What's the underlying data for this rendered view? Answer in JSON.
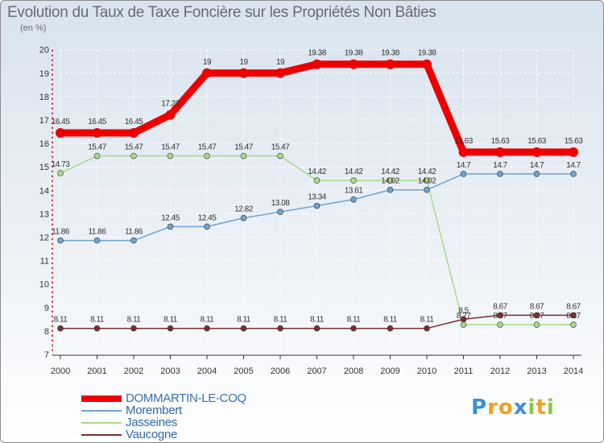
{
  "chart_data": {
    "type": "line",
    "title": "Evolution du Taux de Taxe Foncière sur les Propriétés Non Bâties",
    "unit": "(en %)",
    "categories": [
      "2000",
      "2001",
      "2002",
      "2003",
      "2004",
      "2005",
      "2006",
      "2007",
      "2008",
      "2009",
      "2010",
      "2011",
      "2012",
      "2013",
      "2014"
    ],
    "ylim": [
      7,
      20
    ],
    "yticks": [
      7,
      8,
      9,
      10,
      11,
      12,
      13,
      14,
      15,
      16,
      17,
      18,
      19,
      20
    ],
    "series": [
      {
        "name": "DOMMARTIN-LE-COQ",
        "color": "#ee0000",
        "values": [
          16.45,
          16.45,
          16.45,
          17.22,
          19,
          19,
          19,
          19.38,
          19.38,
          19.38,
          19.38,
          15.63,
          15.63,
          15.63,
          15.63
        ],
        "labels": [
          "16.45",
          "16.45",
          "16.45",
          "17.22",
          "19",
          "19",
          "19",
          "19.38",
          "19.38",
          "19.38",
          "19.38",
          "15.63",
          "15.63",
          "15.63",
          "15.63"
        ]
      },
      {
        "name": "Morembert",
        "color": "#6fa3d0",
        "values": [
          11.86,
          11.86,
          11.86,
          12.45,
          12.45,
          12.82,
          13.08,
          13.34,
          13.61,
          14.02,
          14.02,
          14.7,
          14.7,
          14.7,
          14.7
        ],
        "labels": [
          "11.86",
          "11.86",
          "11.86",
          "12.45",
          "12.45",
          "12.82",
          "13.08",
          "13.34",
          "13.61",
          "14.02",
          "14.02",
          "14.7",
          "14.7",
          "14.7",
          "14.7"
        ]
      },
      {
        "name": "Jasseines",
        "color": "#a9d98a",
        "values": [
          14.73,
          15.47,
          15.47,
          15.47,
          15.47,
          15.47,
          15.47,
          14.42,
          14.42,
          14.42,
          14.42,
          8.27,
          8.27,
          8.27,
          8.27
        ],
        "labels": [
          "14.73",
          "15.47",
          "15.47",
          "15.47",
          "15.47",
          "15.47",
          "15.47",
          "14.42",
          "14.42",
          "14.42",
          "14.42",
          "8.27",
          "8.27",
          "8.27",
          "8.27"
        ]
      },
      {
        "name": "Vaucogne",
        "color": "#7a2f2f",
        "values": [
          8.11,
          8.11,
          8.11,
          8.11,
          8.11,
          8.11,
          8.11,
          8.11,
          8.11,
          8.11,
          8.11,
          8.5,
          8.67,
          8.67,
          8.67
        ],
        "labels": [
          "8.11",
          "8.11",
          "8.11",
          "8.11",
          "8.11",
          "8.11",
          "8.11",
          "8.11",
          "8.11",
          "8.11",
          "8.11",
          "8.5",
          "8.67",
          "8.67",
          "8.67"
        ]
      }
    ]
  },
  "logo": {
    "letters": [
      "P",
      "r",
      "o",
      "x",
      "i",
      "t",
      "i"
    ],
    "colors": [
      "#3d8fd6",
      "#f0a020",
      "#f0a020",
      "#3d8fd6",
      "#8cc63f",
      "#f0a020",
      "#8cc63f"
    ]
  }
}
